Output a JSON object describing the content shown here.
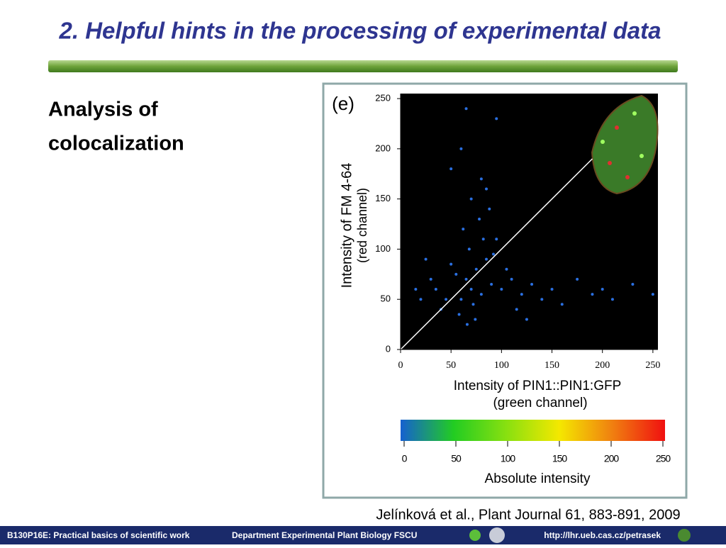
{
  "slide": {
    "title": "2. Helpful hints in the processing of experimental data",
    "heading": [
      "Analysis of",
      "colocalization"
    ],
    "citation": "Jelínková et al., Plant Journal 61, 883-891, 2009",
    "footer": {
      "course": "B130P16E: Practical basics of scientific work",
      "department": "Department  Experimental Plant Biology  FSCU",
      "url": "http://lhr.ueb.cas.cz/petrasek"
    }
  },
  "chart_data": {
    "type": "scatter",
    "panel_label": "(e)",
    "y_label": [
      "Intensity of FM 4-64",
      "(red channel)"
    ],
    "x_label": [
      "Intensity of PIN1::PIN1:GFP",
      "(green channel)"
    ],
    "color": "#2a6fe0",
    "x": [
      70,
      65,
      80,
      75,
      60,
      90,
      55,
      85,
      72,
      68,
      100,
      110,
      45,
      50,
      95,
      120,
      130,
      140,
      150,
      160,
      175,
      190,
      200,
      210,
      230,
      250,
      40,
      35,
      62,
      78,
      88,
      58,
      66,
      74,
      82,
      92,
      105,
      115,
      125,
      30,
      25,
      20,
      15,
      70,
      80,
      60,
      50,
      85,
      95,
      65
    ],
    "y": [
      60,
      70,
      55,
      80,
      50,
      65,
      75,
      90,
      45,
      100,
      60,
      70,
      50,
      85,
      110,
      55,
      65,
      50,
      60,
      45,
      70,
      55,
      60,
      50,
      65,
      55,
      40,
      60,
      120,
      130,
      140,
      35,
      25,
      30,
      110,
      95,
      80,
      40,
      30,
      70,
      90,
      50,
      60,
      150,
      170,
      200,
      180,
      160,
      230,
      240
    ],
    "xlim": [
      0,
      255
    ],
    "ylim": [
      0,
      255
    ],
    "xticks": [
      0,
      50,
      100,
      150,
      200,
      250
    ],
    "yticks": [
      0,
      50,
      100,
      150,
      200,
      250
    ],
    "reference_line": {
      "x": [
        0,
        190
      ],
      "y": [
        0,
        190
      ]
    },
    "colorbar": {
      "label": "Absolute intensity",
      "lim": [
        0,
        250
      ],
      "ticks": [
        0,
        50,
        100,
        150,
        200,
        250
      ],
      "colors": [
        "#1560d0",
        "#22cc22",
        "#88e010",
        "#f4e800",
        "#f08010",
        "#f01010"
      ]
    }
  }
}
